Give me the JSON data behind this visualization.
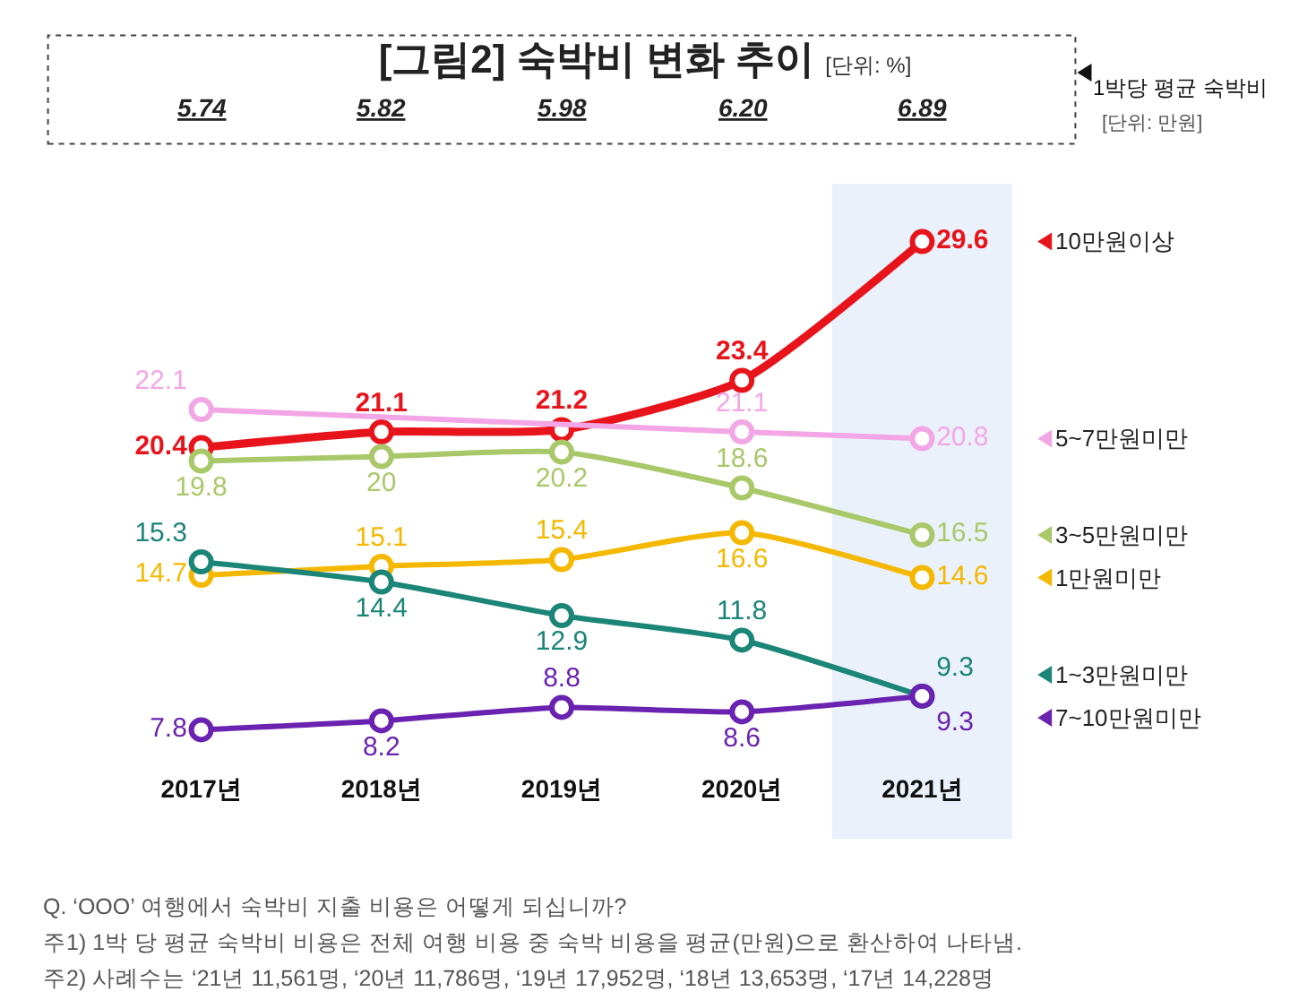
{
  "chart_data": {
    "type": "line",
    "title": "[그림2] 숙박비 변화 추이",
    "subtitle": "[단위: %]",
    "categories": [
      "2017년",
      "2018년",
      "2019년",
      "2020년",
      "2021년"
    ],
    "series": [
      {
        "name": "10만원이상",
        "color": "#e8141c",
        "values": [
          20.4,
          21.1,
          21.2,
          23.4,
          29.6
        ]
      },
      {
        "name": "5~7만원미만",
        "color": "#f3a6e6",
        "values": [
          22.1,
          null,
          null,
          21.1,
          20.8
        ]
      },
      {
        "name": "3~5만원미만",
        "color": "#a9c86a",
        "values": [
          19.8,
          20.0,
          20.2,
          18.6,
          16.5
        ]
      },
      {
        "name": "1만원미만",
        "color": "#f4b800",
        "values": [
          14.7,
          15.1,
          15.4,
          16.6,
          14.6
        ]
      },
      {
        "name": "1~3만원미만",
        "color": "#1b8577",
        "values": [
          15.3,
          14.4,
          12.9,
          11.8,
          9.3
        ]
      },
      {
        "name": "7~10만원미만",
        "color": "#6a22b0",
        "values": [
          7.8,
          8.2,
          8.8,
          8.6,
          9.3
        ]
      }
    ],
    "tick_labels": "x",
    "grid": false,
    "legend": "right",
    "marker": "circle",
    "line_style": "solid",
    "data_labels": true,
    "bands": [
      {
        "axis": "x",
        "from": "2021년",
        "to": "2021년",
        "color": "#eaf1fa"
      }
    ],
    "annotations": [
      "1박당 평균 숙박비",
      "[단위: 만원]",
      "5.74",
      "5.82",
      "5.98",
      "6.20",
      "6.89",
      "Q. ‘OOO’ 여행에서 숙박비 지출 비용은 어떻게 되십니까?",
      "주1) 1박 당 평균 숙박비 비용은 전체 여행 비용 중 숙박 비용을 평균(만원)으로 환산하여 나타냄.",
      "주2) 사례수는 ‘21년 11,561명, ‘20년 11,786명, ‘19년 17,952명, ‘18년 13,653명, ‘17년 14,228명"
    ]
  }
}
